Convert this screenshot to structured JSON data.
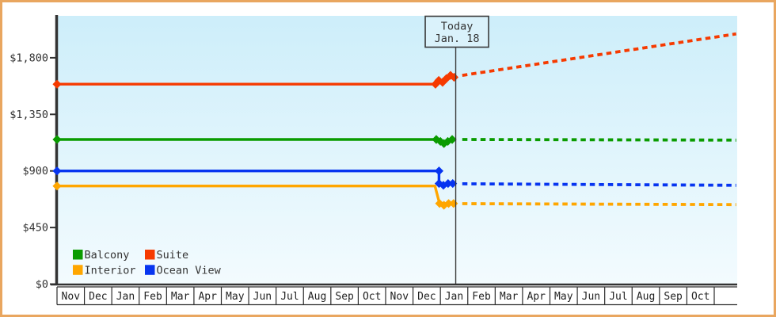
{
  "colors": {
    "frame_border": "#e9a65f",
    "plot_bg_top": "#cdeefa",
    "plot_bg_bottom": "#f3fbfe",
    "axis": "#333333",
    "text": "#333333",
    "grid_band": "#2b2b2b",
    "today_line": "#3a3a3a",
    "today_box_fill": "#daf2fb"
  },
  "chart_data": {
    "type": "line",
    "currency_prefix": "$",
    "x_axis": {
      "months": [
        "Nov",
        "Dec",
        "Jan",
        "Feb",
        "Mar",
        "Apr",
        "May",
        "Jun",
        "Jul",
        "Aug",
        "Sep",
        "Oct",
        "Nov",
        "Dec",
        "Jan",
        "Feb",
        "Mar",
        "Apr",
        "May",
        "Jun",
        "Jul",
        "Aug",
        "Sep",
        "Oct"
      ]
    },
    "y_axis": {
      "ticks": [
        {
          "value": 0,
          "label": "$0"
        },
        {
          "value": 450,
          "label": "$450"
        },
        {
          "value": 900,
          "label": "$900"
        },
        {
          "value": 1350,
          "label": "$1,350"
        },
        {
          "value": 1800,
          "label": "$1,800"
        }
      ],
      "range": [
        0,
        2130
      ],
      "grid": false
    },
    "today": {
      "line1": "Today",
      "line2": "Jan. 18",
      "month_x": 14.56
    },
    "legend": {
      "position": "bottom-left",
      "items": [
        {
          "label": "Balcony",
          "color": "#0a9b00"
        },
        {
          "label": "Suite",
          "color": "#f63a00"
        },
        {
          "label": "Interior",
          "color": "#ffa600"
        },
        {
          "label": "Ocean View",
          "color": "#0735f0"
        }
      ]
    },
    "series": [
      {
        "id": "suite",
        "name": "Suite",
        "color": "#f63a00",
        "history": [
          {
            "x": 0,
            "y": 1590,
            "m": 1
          },
          {
            "x": 13.82,
            "y": 1590,
            "m": 1
          },
          {
            "x": 13.94,
            "y": 1620,
            "m": 1
          },
          {
            "x": 14.08,
            "y": 1605,
            "m": 1
          },
          {
            "x": 14.22,
            "y": 1635,
            "m": 1
          },
          {
            "x": 14.37,
            "y": 1660,
            "m": 1
          },
          {
            "x": 14.5,
            "y": 1645,
            "m": 1
          }
        ],
        "forecast": [
          {
            "x": 14.8,
            "y": 1660
          },
          {
            "x": 24.8,
            "y": 1990
          }
        ]
      },
      {
        "id": "balcony",
        "name": "Balcony",
        "color": "#0a9b00",
        "history": [
          {
            "x": 0,
            "y": 1150,
            "m": 1
          },
          {
            "x": 13.85,
            "y": 1150,
            "m": 1
          },
          {
            "x": 14.0,
            "y": 1135,
            "m": 1
          },
          {
            "x": 14.13,
            "y": 1118,
            "m": 1
          },
          {
            "x": 14.27,
            "y": 1135,
            "m": 1
          },
          {
            "x": 14.43,
            "y": 1150,
            "m": 1
          }
        ],
        "forecast": [
          {
            "x": 14.8,
            "y": 1150
          },
          {
            "x": 24.8,
            "y": 1145
          }
        ]
      },
      {
        "id": "interior",
        "name": "Interior",
        "color": "#ffa600",
        "history": [
          {
            "x": 0,
            "y": 780,
            "m": 1
          },
          {
            "x": 13.8,
            "y": 780
          },
          {
            "x": 13.97,
            "y": 641,
            "m": 1
          },
          {
            "x": 14.13,
            "y": 627,
            "m": 1
          },
          {
            "x": 14.3,
            "y": 641,
            "m": 1
          },
          {
            "x": 14.48,
            "y": 641,
            "m": 1
          }
        ],
        "forecast": [
          {
            "x": 14.8,
            "y": 640
          },
          {
            "x": 24.8,
            "y": 632
          }
        ]
      },
      {
        "id": "ocean_view",
        "name": "Ocean View",
        "color": "#0735f0",
        "history": [
          {
            "x": 0,
            "y": 900,
            "m": 1
          },
          {
            "x": 13.95,
            "y": 900,
            "m": 1
          },
          {
            "x": 13.95,
            "y": 800,
            "m": 1
          },
          {
            "x": 14.11,
            "y": 786,
            "m": 1
          },
          {
            "x": 14.28,
            "y": 800,
            "m": 1
          },
          {
            "x": 14.45,
            "y": 800,
            "m": 1
          }
        ],
        "forecast": [
          {
            "x": 14.8,
            "y": 798
          },
          {
            "x": 24.8,
            "y": 786
          }
        ]
      }
    ]
  }
}
